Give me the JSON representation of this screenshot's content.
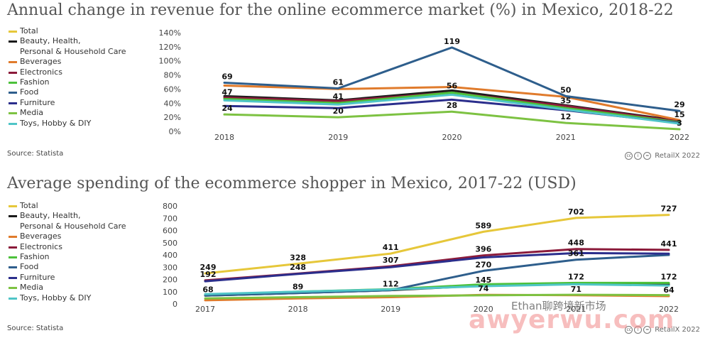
{
  "chart_data": [
    {
      "type": "line",
      "title": "Annual change in revenue for the online ecommerce market (%) in Mexico, 2018-22",
      "source": "Source: Statista",
      "credit": "RetailX 2022",
      "x": [
        "2018",
        "2019",
        "2020",
        "2021",
        "2022"
      ],
      "ylim": [
        0,
        140
      ],
      "yticks": [
        "0%",
        "20%",
        "40%",
        "60%",
        "80%",
        "100%",
        "120%",
        "140%"
      ],
      "legend_position": "left",
      "series": [
        {
          "name": "Total",
          "color": "#e6c73a",
          "values": [
            47,
            41,
            56,
            35,
            15
          ]
        },
        {
          "name": "Beauty, Health,\nPersonal & Household Care",
          "color": "#1a1a1a",
          "values": [
            50,
            44,
            58,
            37,
            15
          ]
        },
        {
          "name": "Beverages",
          "color": "#e07b2c",
          "values": [
            65,
            60,
            63,
            49,
            16
          ]
        },
        {
          "name": "Electronics",
          "color": "#8b1a3a",
          "values": [
            48,
            43,
            55,
            36,
            14
          ]
        },
        {
          "name": "Fashion",
          "color": "#4cc13b",
          "values": [
            46,
            40,
            55,
            33,
            13
          ]
        },
        {
          "name": "Food",
          "color": "#2e5e8c",
          "values": [
            69,
            61,
            119,
            50,
            29
          ]
        },
        {
          "name": "Furniture",
          "color": "#2b2e8c",
          "values": [
            36,
            33,
            45,
            30,
            12
          ]
        },
        {
          "name": "Media",
          "color": "#7dc242",
          "values": [
            24,
            20,
            28,
            12,
            3
          ]
        },
        {
          "name": "Toys, Hobby & DIY",
          "color": "#4fc5c7",
          "values": [
            44,
            38,
            52,
            31,
            11
          ]
        }
      ],
      "data_labels": [
        {
          "series": 5,
          "x": "2018",
          "text": "69"
        },
        {
          "series": 0,
          "x": "2018",
          "text": "47"
        },
        {
          "series": 7,
          "x": "2018",
          "text": "24"
        },
        {
          "series": 5,
          "x": "2019",
          "text": "61"
        },
        {
          "series": 0,
          "x": "2019",
          "text": "41"
        },
        {
          "series": 7,
          "x": "2019",
          "text": "20"
        },
        {
          "series": 5,
          "x": "2020",
          "text": "119"
        },
        {
          "series": 0,
          "x": "2020",
          "text": "56"
        },
        {
          "series": 7,
          "x": "2020",
          "text": "28"
        },
        {
          "series": 5,
          "x": "2021",
          "text": "50"
        },
        {
          "series": 0,
          "x": "2021",
          "text": "35"
        },
        {
          "series": 7,
          "x": "2021",
          "text": "12"
        },
        {
          "series": 5,
          "x": "2022",
          "text": "29"
        },
        {
          "series": 0,
          "x": "2022",
          "text": "15"
        },
        {
          "series": 7,
          "x": "2022",
          "text": "3"
        }
      ]
    },
    {
      "type": "line",
      "title": "Average spending of the ecommerce shopper in Mexico, 2017-22 (USD)",
      "source": "Source: Statista",
      "credit": "RetailX 2022",
      "x": [
        "2017",
        "2018",
        "2019",
        "2020",
        "2021",
        "2022"
      ],
      "ylim": [
        0,
        800
      ],
      "yticks": [
        "0",
        "100",
        "200",
        "300",
        "400",
        "500",
        "600",
        "700",
        "800"
      ],
      "legend_position": "left",
      "series": [
        {
          "name": "Total",
          "color": "#e6c73a",
          "values": [
            249,
            328,
            411,
            589,
            702,
            727
          ]
        },
        {
          "name": "Beauty, Health,\nPersonal & Household Care",
          "color": "#1a1a1a",
          "values": [
            68,
            89,
            112,
            150,
            165,
            160
          ]
        },
        {
          "name": "Beverages",
          "color": "#e07b2c",
          "values": [
            30,
            45,
            55,
            74,
            71,
            64
          ]
        },
        {
          "name": "Electronics",
          "color": "#8b1a3a",
          "values": [
            192,
            248,
            307,
            396,
            448,
            441
          ]
        },
        {
          "name": "Fashion",
          "color": "#4cc13b",
          "values": [
            75,
            100,
            120,
            160,
            172,
            172
          ]
        },
        {
          "name": "Food",
          "color": "#2e5e8c",
          "values": [
            68,
            89,
            112,
            270,
            361,
            400
          ]
        },
        {
          "name": "Furniture",
          "color": "#2b2e8c",
          "values": [
            185,
            245,
            300,
            380,
            415,
            410
          ]
        },
        {
          "name": "Media",
          "color": "#7dc242",
          "values": [
            45,
            55,
            65,
            70,
            75,
            72
          ]
        },
        {
          "name": "Toys, Hobby & DIY",
          "color": "#4fc5c7",
          "values": [
            80,
            100,
            118,
            145,
            160,
            150
          ]
        }
      ],
      "data_labels": [
        {
          "series": 0,
          "x": "2017",
          "text": "249"
        },
        {
          "series": 3,
          "x": "2017",
          "text": "192"
        },
        {
          "series": 1,
          "x": "2017",
          "text": "68"
        },
        {
          "series": 0,
          "x": "2018",
          "text": "328"
        },
        {
          "series": 3,
          "x": "2018",
          "text": "248"
        },
        {
          "series": 1,
          "x": "2018",
          "text": "89"
        },
        {
          "series": 0,
          "x": "2019",
          "text": "411"
        },
        {
          "series": 3,
          "x": "2019",
          "text": "307"
        },
        {
          "series": 1,
          "x": "2019",
          "text": "112"
        },
        {
          "series": 0,
          "x": "2020",
          "text": "589"
        },
        {
          "series": 3,
          "x": "2020",
          "text": "396"
        },
        {
          "series": 5,
          "x": "2020",
          "text": "270"
        },
        {
          "series": 8,
          "x": "2020",
          "text": "145"
        },
        {
          "series": 2,
          "x": "2020",
          "text": "74"
        },
        {
          "series": 0,
          "x": "2021",
          "text": "702"
        },
        {
          "series": 3,
          "x": "2021",
          "text": "448"
        },
        {
          "series": 5,
          "x": "2021",
          "text": "361"
        },
        {
          "series": 4,
          "x": "2021",
          "text": "172"
        },
        {
          "series": 2,
          "x": "2021",
          "text": "71"
        },
        {
          "series": 0,
          "x": "2022",
          "text": "727"
        },
        {
          "series": 3,
          "x": "2022",
          "text": "441"
        },
        {
          "series": 4,
          "x": "2022",
          "text": "172"
        },
        {
          "series": 2,
          "x": "2022",
          "text": "64"
        }
      ]
    }
  ],
  "watermark": {
    "text": "awyerwu.com",
    "sub": "Ethan聊跨境新市场"
  }
}
